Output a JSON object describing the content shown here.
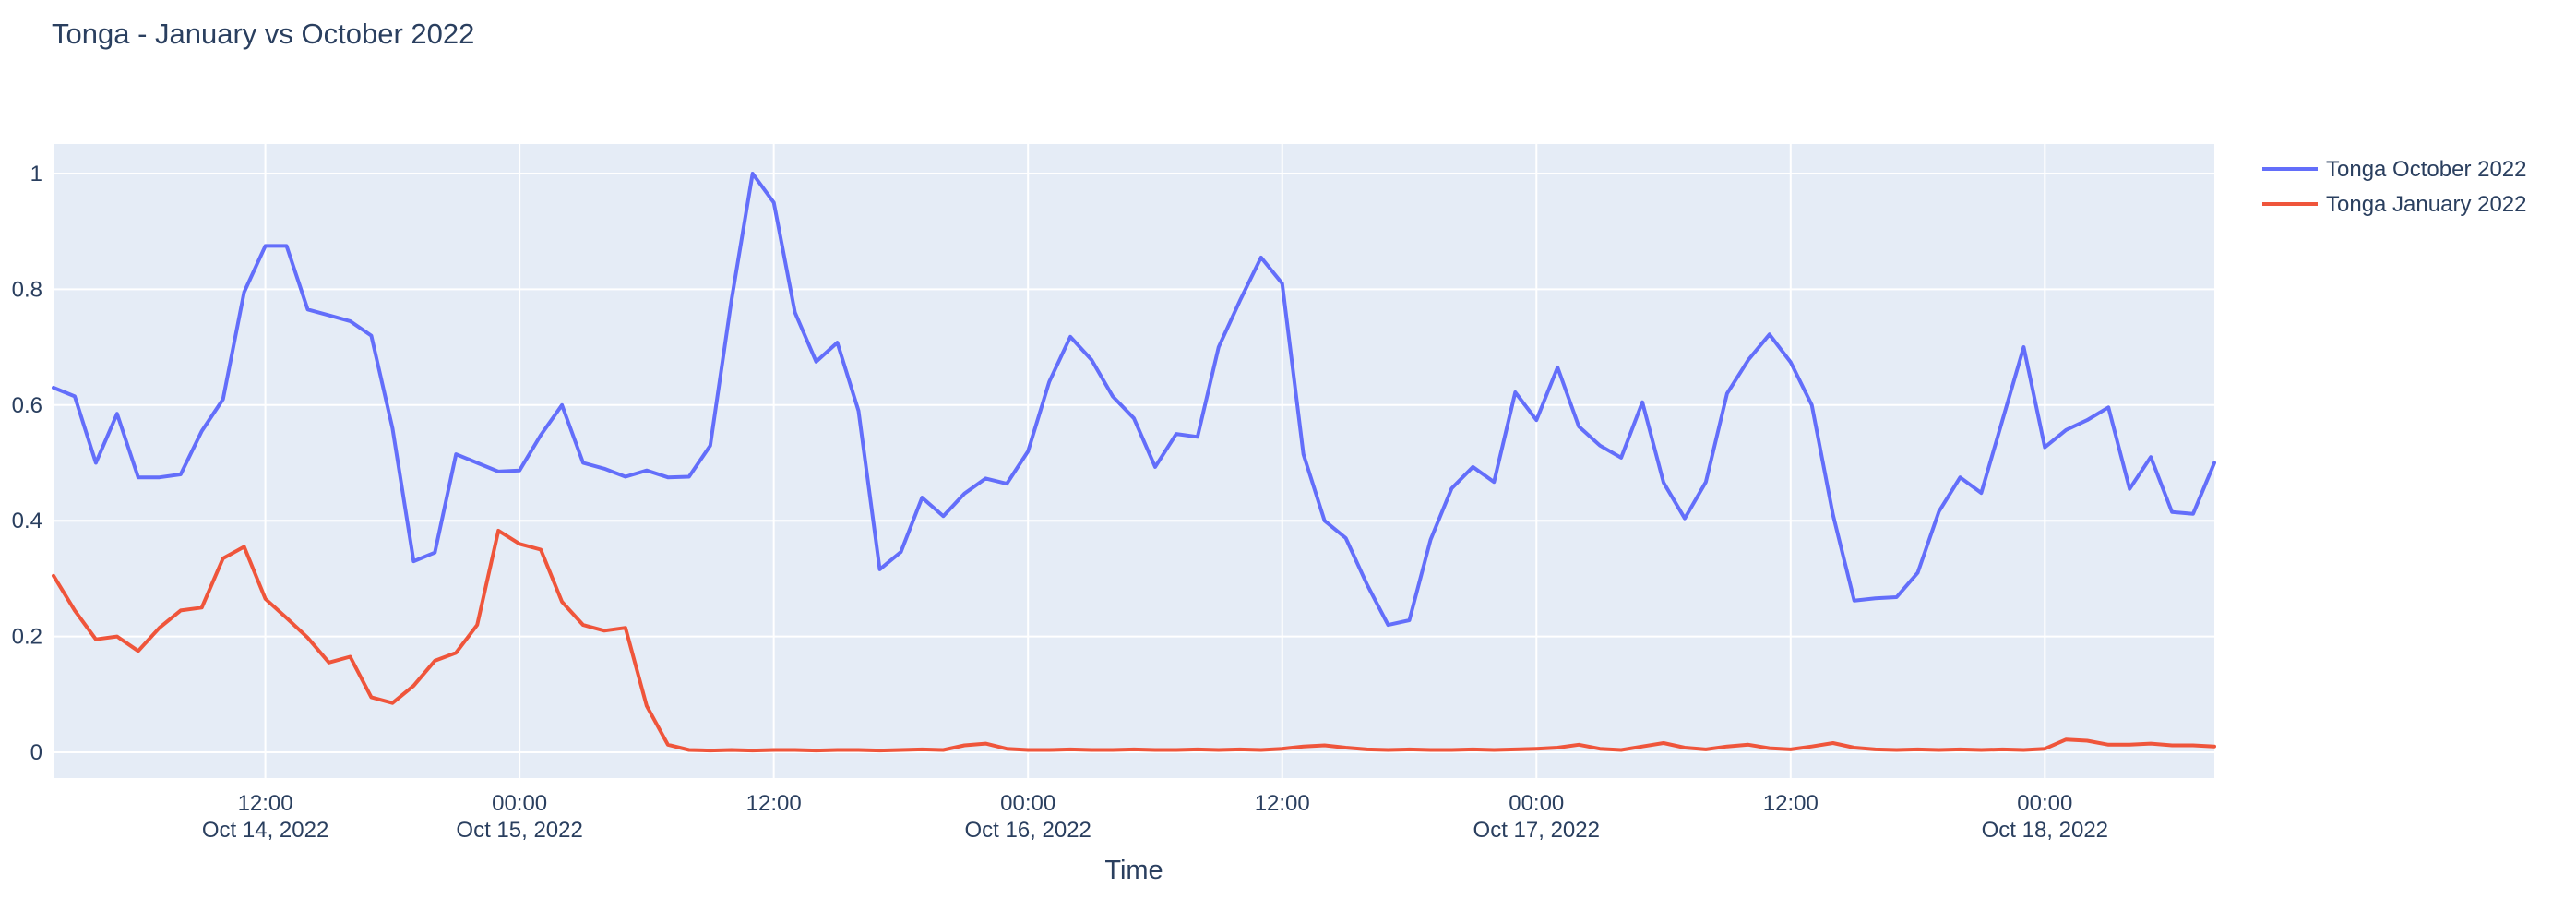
{
  "page": {
    "background": "#ffffff"
  },
  "chart_data": {
    "type": "line",
    "title": "Tonga - January vs October 2022",
    "xlabel": "Time",
    "ylabel": "",
    "x_start_label": "Oct 14, 2022 02:00",
    "x_step_hours": 1,
    "n_points": 103,
    "ylim": [
      -0.045,
      1.051
    ],
    "grid": true,
    "legend_position": "right",
    "plot_bg": "#e5ecf6",
    "grid_color": "#ffffff",
    "text_color": "#2a3f5f",
    "y_ticks": [
      {
        "value": 0,
        "label": "0"
      },
      {
        "value": 0.2,
        "label": "0.2"
      },
      {
        "value": 0.4,
        "label": "0.4"
      },
      {
        "value": 0.6,
        "label": "0.6"
      },
      {
        "value": 0.8,
        "label": "0.8"
      },
      {
        "value": 1,
        "label": "1"
      }
    ],
    "x_ticks": [
      {
        "hour_index": 10,
        "time": "12:00",
        "date": "Oct 14, 2022"
      },
      {
        "hour_index": 22,
        "time": "00:00",
        "date": "Oct 15, 2022"
      },
      {
        "hour_index": 34,
        "time": "12:00",
        "date": ""
      },
      {
        "hour_index": 46,
        "time": "00:00",
        "date": "Oct 16, 2022"
      },
      {
        "hour_index": 58,
        "time": "12:00",
        "date": ""
      },
      {
        "hour_index": 70,
        "time": "00:00",
        "date": "Oct 17, 2022"
      },
      {
        "hour_index": 82,
        "time": "12:00",
        "date": ""
      },
      {
        "hour_index": 94,
        "time": "00:00",
        "date": "Oct 18, 2022"
      }
    ],
    "series": [
      {
        "name": "Tonga October 2022",
        "color": "#636efa",
        "values": [
          0.63,
          0.615,
          0.5,
          0.585,
          0.475,
          0.475,
          0.48,
          0.555,
          0.61,
          0.795,
          0.875,
          0.875,
          0.765,
          0.755,
          0.745,
          0.72,
          0.56,
          0.33,
          0.345,
          0.515,
          0.5,
          0.485,
          0.487,
          0.548,
          0.6,
          0.5,
          0.49,
          0.476,
          0.487,
          0.475,
          0.476,
          0.53,
          0.78,
          1.0,
          0.95,
          0.76,
          0.675,
          0.708,
          0.59,
          0.316,
          0.346,
          0.44,
          0.408,
          0.447,
          0.473,
          0.464,
          0.52,
          0.64,
          0.718,
          0.678,
          0.615,
          0.577,
          0.493,
          0.55,
          0.545,
          0.7,
          0.78,
          0.855,
          0.81,
          0.515,
          0.4,
          0.37,
          0.29,
          0.22,
          0.228,
          0.367,
          0.456,
          0.493,
          0.467,
          0.622,
          0.574,
          0.665,
          0.563,
          0.53,
          0.509,
          0.605,
          0.466,
          0.404,
          0.467,
          0.62,
          0.678,
          0.722,
          0.674,
          0.6,
          0.41,
          0.262,
          0.266,
          0.268,
          0.31,
          0.416,
          0.475,
          0.448,
          0.574,
          0.7,
          0.527,
          0.557,
          0.574,
          0.596,
          0.455,
          0.51,
          0.415,
          0.412,
          0.5
        ]
      },
      {
        "name": "Tonga January 2022",
        "color": "#ef553b",
        "values": [
          0.305,
          0.245,
          0.195,
          0.2,
          0.175,
          0.215,
          0.245,
          0.25,
          0.335,
          0.355,
          0.265,
          0.232,
          0.198,
          0.155,
          0.165,
          0.095,
          0.085,
          0.115,
          0.158,
          0.172,
          0.22,
          0.383,
          0.36,
          0.35,
          0.26,
          0.22,
          0.21,
          0.215,
          0.08,
          0.013,
          0.004,
          0.003,
          0.004,
          0.003,
          0.004,
          0.004,
          0.003,
          0.004,
          0.004,
          0.003,
          0.004,
          0.005,
          0.004,
          0.012,
          0.015,
          0.006,
          0.004,
          0.004,
          0.005,
          0.004,
          0.004,
          0.005,
          0.004,
          0.004,
          0.005,
          0.004,
          0.005,
          0.004,
          0.006,
          0.01,
          0.012,
          0.008,
          0.005,
          0.004,
          0.005,
          0.004,
          0.004,
          0.005,
          0.004,
          0.005,
          0.006,
          0.008,
          0.013,
          0.006,
          0.004,
          0.01,
          0.016,
          0.008,
          0.005,
          0.01,
          0.013,
          0.007,
          0.005,
          0.01,
          0.016,
          0.008,
          0.005,
          0.004,
          0.005,
          0.004,
          0.005,
          0.004,
          0.005,
          0.004,
          0.006,
          0.022,
          0.02,
          0.013,
          0.013,
          0.015,
          0.012,
          0.012,
          0.01
        ]
      }
    ]
  }
}
